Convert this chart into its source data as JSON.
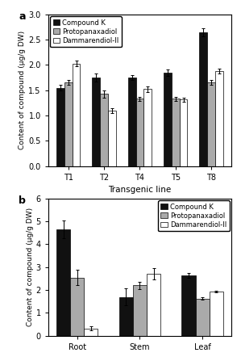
{
  "panel_a": {
    "categories": [
      "T1",
      "T2",
      "T4",
      "T5",
      "T8"
    ],
    "compound_k": [
      1.55,
      1.75,
      1.75,
      1.85,
      2.65
    ],
    "protopanaxadiol": [
      1.65,
      1.43,
      1.33,
      1.33,
      1.65
    ],
    "dammarendiol": [
      2.03,
      1.1,
      1.52,
      1.32,
      1.88
    ],
    "ck_err": [
      0.05,
      0.08,
      0.05,
      0.06,
      0.08
    ],
    "ppd_err": [
      0.05,
      0.07,
      0.04,
      0.04,
      0.05
    ],
    "dam_err": [
      0.06,
      0.05,
      0.05,
      0.04,
      0.05
    ],
    "ylim": [
      0,
      3.0
    ],
    "yticks": [
      0,
      0.5,
      1.0,
      1.5,
      2.0,
      2.5,
      3.0
    ],
    "ylabel": "Content of compound (μg/g DW)"
  },
  "panel_b": {
    "categories": [
      "Root",
      "Stem",
      "Leaf"
    ],
    "compound_k": [
      4.65,
      1.7,
      2.65
    ],
    "protopanaxadiol": [
      2.55,
      2.2,
      1.63
    ],
    "dammarendiol": [
      0.32,
      2.7,
      1.92
    ],
    "ck_err": [
      0.4,
      0.38,
      0.1
    ],
    "ppd_err": [
      0.35,
      0.15,
      0.05
    ],
    "dam_err": [
      0.08,
      0.25,
      0.04
    ],
    "ylim": [
      0,
      6.0
    ],
    "yticks": [
      0,
      1,
      2,
      3,
      4,
      5,
      6
    ],
    "ylabel": "Content of compound (μg/g DW)"
  },
  "shared_xlabel": "Transgenic line",
  "colors": {
    "compound_k": "#111111",
    "protopanaxadiol": "#aaaaaa",
    "dammarendiol": "#ffffff"
  },
  "bar_width": 0.22,
  "legend_labels": [
    "Compound K",
    "Protopanaxadiol",
    "Dammarendiol-II"
  ],
  "panel_a_label": "a",
  "panel_b_label": "b"
}
